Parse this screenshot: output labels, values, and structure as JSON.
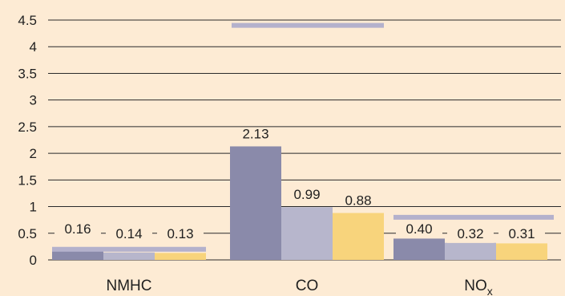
{
  "chart_data": {
    "type": "bar",
    "categories": [
      "NMHC",
      "CO",
      "NO"
    ],
    "category_subscripts": [
      "",
      "",
      "x"
    ],
    "ylim": [
      0,
      4.5
    ],
    "yticks": [
      0,
      0.5,
      1,
      1.5,
      2,
      2.5,
      3,
      3.5,
      4,
      4.5
    ],
    "grid": true,
    "series": [
      {
        "values": [
          0.16,
          2.13,
          0.4
        ],
        "labels": [
          "0.16",
          "2.13",
          "0.40"
        ],
        "color": "#8a8aaa"
      },
      {
        "values": [
          0.14,
          0.99,
          0.32
        ],
        "labels": [
          "0.14",
          "0.99",
          "0.32"
        ],
        "color": "#b7b6cc"
      },
      {
        "values": [
          0.13,
          0.88,
          0.31
        ],
        "labels": [
          "0.13",
          "0.88",
          "0.31"
        ],
        "color": "#f8d47c"
      }
    ],
    "reference_lines": [
      {
        "category": "NMHC",
        "value": 0.2
      },
      {
        "category": "CO",
        "value": 4.4
      },
      {
        "category": "NO",
        "value": 0.8
      }
    ],
    "reference_color": "#b4b1cc"
  }
}
